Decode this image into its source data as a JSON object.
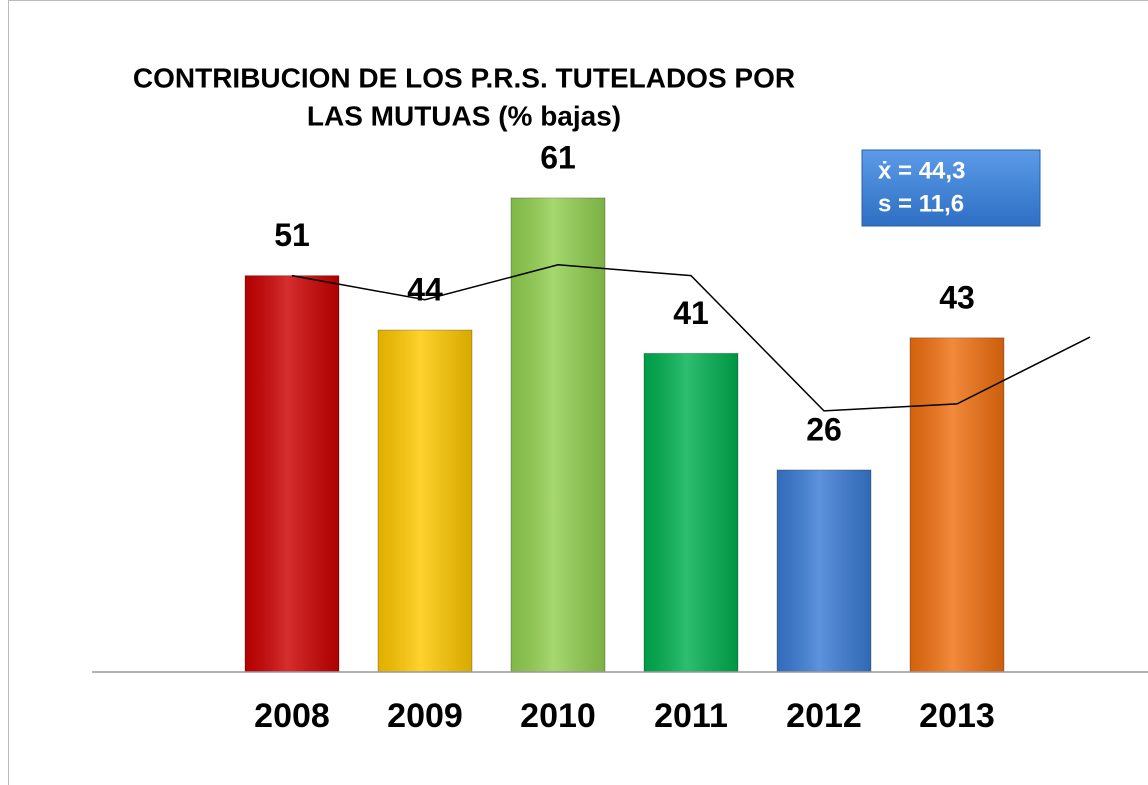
{
  "chart_data": {
    "type": "bar",
    "title": [
      "CONTRIBUCION DE LOS P.R.S. TUTELADOS POR",
      "LAS MUTUAS (% bajas)"
    ],
    "categories": [
      "2008",
      "2009",
      "2010",
      "2011",
      "2012",
      "2013",
      null
    ],
    "series": [
      {
        "type": "bar",
        "colors": [
          "#cc0000",
          "#ffc800",
          "#92d050",
          "#00b050",
          "#3a7bd5",
          "#f07010",
          null
        ],
        "values": [
          51,
          44,
          61,
          41,
          26,
          43,
          null
        ]
      },
      {
        "type": "line",
        "color": "#000000",
        "values": [
          51,
          47.9,
          52.4,
          51,
          33.6,
          34.5,
          43.1
        ]
      }
    ],
    "annotations": [
      "ẋ = 44,3",
      "s = 11,6"
    ],
    "ylim": [
      0,
      70
    ]
  }
}
